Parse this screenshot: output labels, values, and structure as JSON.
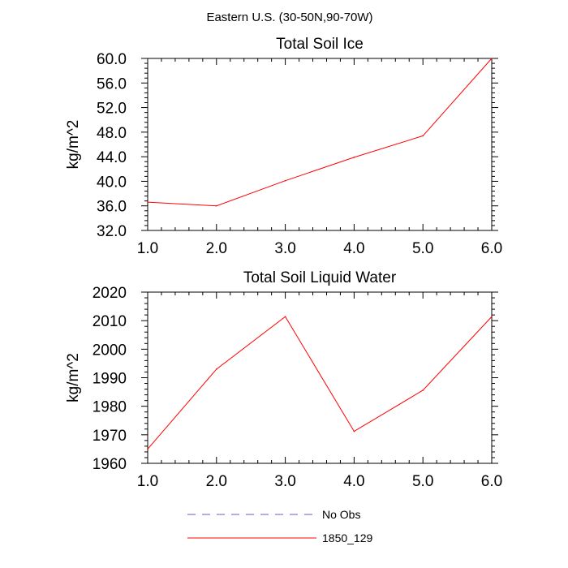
{
  "figure": {
    "suptitle": "Eastern U.S. (30-50N,90-70W)"
  },
  "legend": {
    "entries": [
      {
        "label": "No Obs",
        "color": "#6a5acd",
        "dash": true
      },
      {
        "label": "1850_129",
        "color": "#ff0000",
        "dash": false
      }
    ]
  },
  "chart_data": [
    {
      "type": "line",
      "title": "Total Soil Ice",
      "xlabel": "",
      "ylabel": "kg/m^2",
      "xlim": [
        1.0,
        6.0
      ],
      "ylim": [
        32.0,
        60.0
      ],
      "xticks": [
        1.0,
        2.0,
        3.0,
        4.0,
        5.0,
        6.0
      ],
      "xtick_labels": [
        "1.0",
        "2.0",
        "3.0",
        "4.0",
        "5.0",
        "6.0"
      ],
      "yticks": [
        32.0,
        36.0,
        40.0,
        44.0,
        48.0,
        52.0,
        56.0,
        60.0
      ],
      "ytick_labels": [
        "32.0",
        "36.0",
        "40.0",
        "44.0",
        "48.0",
        "52.0",
        "56.0",
        "60.0"
      ],
      "series": [
        {
          "name": "1850_129",
          "color": "#ff0000",
          "x": [
            1,
            2,
            3,
            4,
            5,
            6
          ],
          "values": [
            36.6,
            36.0,
            40.1,
            43.9,
            47.4,
            60.0
          ]
        }
      ]
    },
    {
      "type": "line",
      "title": "Total Soil Liquid Water",
      "xlabel": "",
      "ylabel": "kg/m^2",
      "xlim": [
        1.0,
        6.0
      ],
      "ylim": [
        1960,
        2020
      ],
      "xticks": [
        1.0,
        2.0,
        3.0,
        4.0,
        5.0,
        6.0
      ],
      "xtick_labels": [
        "1.0",
        "2.0",
        "3.0",
        "4.0",
        "5.0",
        "6.0"
      ],
      "yticks": [
        1960,
        1970,
        1980,
        1990,
        2000,
        2010,
        2020
      ],
      "ytick_labels": [
        "1960",
        "1970",
        "1980",
        "1990",
        "2000",
        "2010",
        "2020"
      ],
      "series": [
        {
          "name": "1850_129",
          "color": "#ff0000",
          "x": [
            1,
            2,
            3,
            4,
            5,
            6
          ],
          "values": [
            1965.0,
            1993.0,
            2011.4,
            1971.2,
            1985.6,
            2011.4
          ]
        }
      ]
    }
  ]
}
